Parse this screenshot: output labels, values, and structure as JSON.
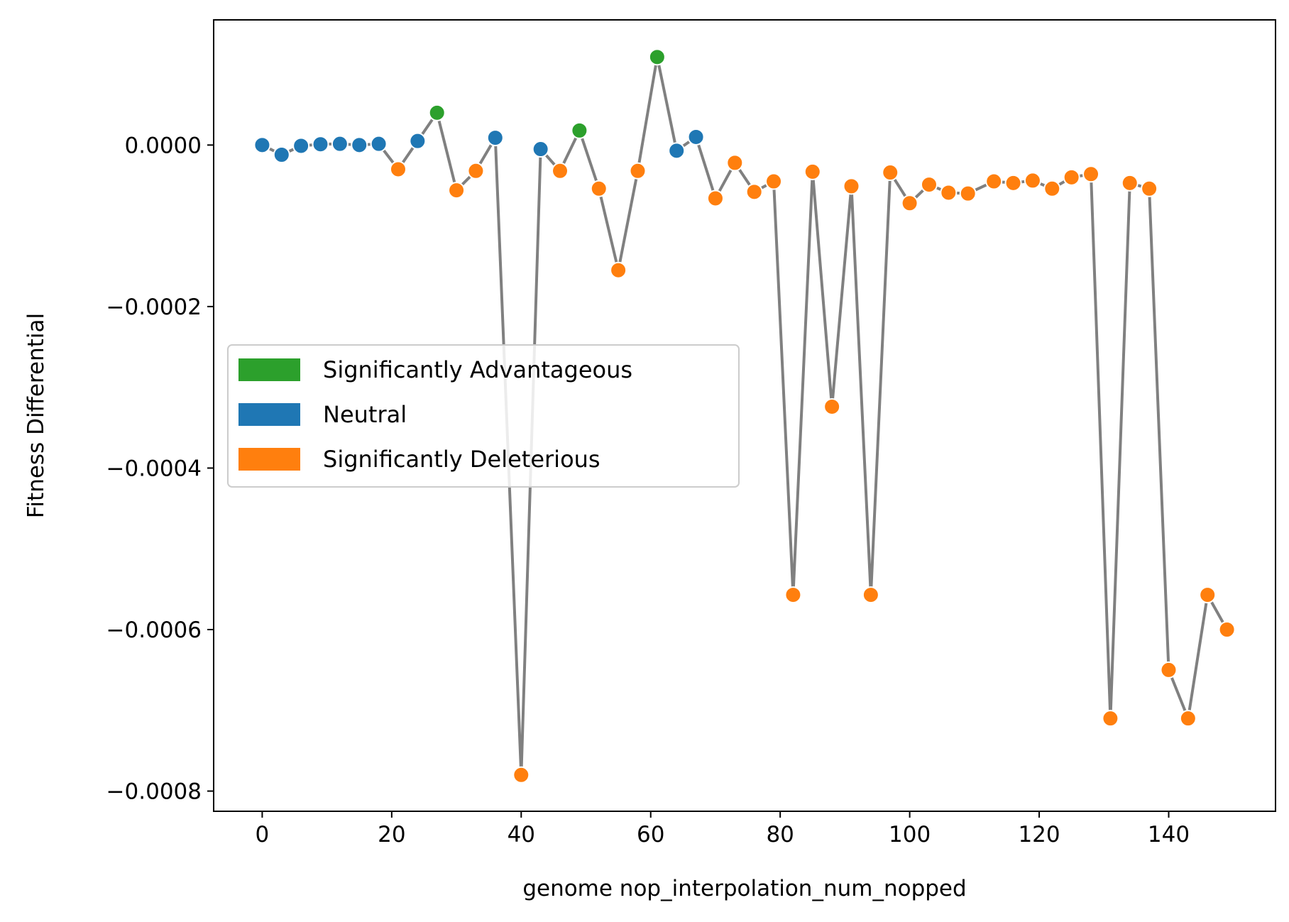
{
  "chart_data": {
    "type": "line",
    "xlabel": "genome nop_interpolation_num_nopped",
    "ylabel": "Fitness Differential",
    "xlim": [
      -7.5,
      156.5
    ],
    "ylim": [
      -0.000825,
      0.000155
    ],
    "xticks": [
      0,
      20,
      40,
      60,
      80,
      100,
      120,
      140
    ],
    "yticks": [
      0.0,
      -0.0002,
      -0.0004,
      -0.0006,
      -0.0008
    ],
    "xtick_labels": [
      "0",
      "20",
      "40",
      "60",
      "80",
      "100",
      "120",
      "140"
    ],
    "ytick_labels": [
      "0.0000",
      "−0.0002",
      "−0.0004",
      "−0.0006",
      "−0.0008"
    ],
    "grid": false,
    "legend_position": "center-left",
    "line_color": "#808080",
    "categories": [
      {
        "key": "adv",
        "name": "Significantly Advantageous",
        "color": "#2ca02c"
      },
      {
        "key": "neu",
        "name": "Neutral",
        "color": "#1f77b4"
      },
      {
        "key": "del",
        "name": "Significantly Deleterious",
        "color": "#ff7f0e"
      }
    ],
    "points": [
      {
        "x": 0,
        "y": 0.0,
        "cat": "neu"
      },
      {
        "x": 3,
        "y": -1.2e-05,
        "cat": "neu"
      },
      {
        "x": 6,
        "y": -1e-06,
        "cat": "neu"
      },
      {
        "x": 9,
        "y": 1e-06,
        "cat": "neu"
      },
      {
        "x": 12,
        "y": 1.5e-06,
        "cat": "neu"
      },
      {
        "x": 15,
        "y": 0.0,
        "cat": "neu"
      },
      {
        "x": 18,
        "y": 1.5e-06,
        "cat": "neu"
      },
      {
        "x": 21,
        "y": -3e-05,
        "cat": "del"
      },
      {
        "x": 24,
        "y": 5e-06,
        "cat": "neu"
      },
      {
        "x": 27,
        "y": 4e-05,
        "cat": "adv"
      },
      {
        "x": 30,
        "y": -5.6e-05,
        "cat": "del"
      },
      {
        "x": 33,
        "y": -3.2e-05,
        "cat": "del"
      },
      {
        "x": 36,
        "y": 9e-06,
        "cat": "neu"
      },
      {
        "x": 40,
        "y": -0.00078,
        "cat": "del"
      },
      {
        "x": 43,
        "y": -5e-06,
        "cat": "neu"
      },
      {
        "x": 46,
        "y": -3.2e-05,
        "cat": "del"
      },
      {
        "x": 49,
        "y": 1.8e-05,
        "cat": "adv"
      },
      {
        "x": 52,
        "y": -5.4e-05,
        "cat": "del"
      },
      {
        "x": 55,
        "y": -0.000155,
        "cat": "del"
      },
      {
        "x": 58,
        "y": -3.2e-05,
        "cat": "del"
      },
      {
        "x": 61,
        "y": 0.000109,
        "cat": "adv"
      },
      {
        "x": 64,
        "y": -7e-06,
        "cat": "neu"
      },
      {
        "x": 67,
        "y": 1e-05,
        "cat": "neu"
      },
      {
        "x": 70,
        "y": -6.6e-05,
        "cat": "del"
      },
      {
        "x": 73,
        "y": -2.2e-05,
        "cat": "del"
      },
      {
        "x": 76,
        "y": -5.8e-05,
        "cat": "del"
      },
      {
        "x": 79,
        "y": -4.5e-05,
        "cat": "del"
      },
      {
        "x": 82,
        "y": -0.000557,
        "cat": "del"
      },
      {
        "x": 85,
        "y": -3.3e-05,
        "cat": "del"
      },
      {
        "x": 88,
        "y": -0.000324,
        "cat": "del"
      },
      {
        "x": 91,
        "y": -5.1e-05,
        "cat": "del"
      },
      {
        "x": 94,
        "y": -0.000557,
        "cat": "del"
      },
      {
        "x": 97,
        "y": -3.4e-05,
        "cat": "del"
      },
      {
        "x": 100,
        "y": -7.2e-05,
        "cat": "del"
      },
      {
        "x": 103,
        "y": -4.9e-05,
        "cat": "del"
      },
      {
        "x": 106,
        "y": -5.9e-05,
        "cat": "del"
      },
      {
        "x": 109,
        "y": -6e-05,
        "cat": "del"
      },
      {
        "x": 113,
        "y": -4.5e-05,
        "cat": "del"
      },
      {
        "x": 116,
        "y": -4.7e-05,
        "cat": "del"
      },
      {
        "x": 119,
        "y": -4.4e-05,
        "cat": "del"
      },
      {
        "x": 122,
        "y": -5.4e-05,
        "cat": "del"
      },
      {
        "x": 125,
        "y": -4e-05,
        "cat": "del"
      },
      {
        "x": 128,
        "y": -3.6e-05,
        "cat": "del"
      },
      {
        "x": 131,
        "y": -0.00071,
        "cat": "del"
      },
      {
        "x": 134,
        "y": -4.7e-05,
        "cat": "del"
      },
      {
        "x": 137,
        "y": -5.4e-05,
        "cat": "del"
      },
      {
        "x": 140,
        "y": -0.00065,
        "cat": "del"
      },
      {
        "x": 143,
        "y": -0.00071,
        "cat": "del"
      },
      {
        "x": 146,
        "y": -0.000557,
        "cat": "del"
      },
      {
        "x": 149,
        "y": -0.0006,
        "cat": "del"
      }
    ]
  }
}
